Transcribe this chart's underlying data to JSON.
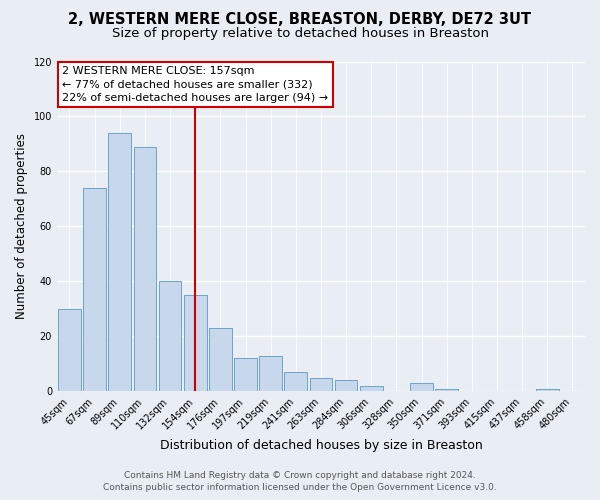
{
  "title": "2, WESTERN MERE CLOSE, BREASTON, DERBY, DE72 3UT",
  "subtitle": "Size of property relative to detached houses in Breaston",
  "xlabel": "Distribution of detached houses by size in Breaston",
  "ylabel": "Number of detached properties",
  "bar_labels": [
    "45sqm",
    "67sqm",
    "89sqm",
    "110sqm",
    "132sqm",
    "154sqm",
    "176sqm",
    "197sqm",
    "219sqm",
    "241sqm",
    "263sqm",
    "284sqm",
    "306sqm",
    "328sqm",
    "350sqm",
    "371sqm",
    "393sqm",
    "415sqm",
    "437sqm",
    "458sqm",
    "480sqm"
  ],
  "bar_values": [
    30,
    74,
    94,
    89,
    40,
    35,
    23,
    12,
    13,
    7,
    5,
    4,
    2,
    0,
    3,
    1,
    0,
    0,
    0,
    1,
    0
  ],
  "bar_color": "#c8d8ec",
  "bar_edge_color": "#6fa3c8",
  "vline_color": "#cc0000",
  "ylim": [
    0,
    120
  ],
  "yticks": [
    0,
    20,
    40,
    60,
    80,
    100,
    120
  ],
  "annotation_text": "2 WESTERN MERE CLOSE: 157sqm\n← 77% of detached houses are smaller (332)\n22% of semi-detached houses are larger (94) →",
  "annotation_box_color": "#ffffff",
  "annotation_box_edge_color": "#cc0000",
  "footer1": "Contains HM Land Registry data © Crown copyright and database right 2024.",
  "footer2": "Contains public sector information licensed under the Open Government Licence v3.0.",
  "background_color": "#e8eef4",
  "grid_color": "#ffffff",
  "title_fontsize": 10.5,
  "subtitle_fontsize": 9.5,
  "ylabel_fontsize": 8.5,
  "xlabel_fontsize": 9,
  "tick_fontsize": 7,
  "footer_fontsize": 6.5,
  "annotation_fontsize": 8
}
